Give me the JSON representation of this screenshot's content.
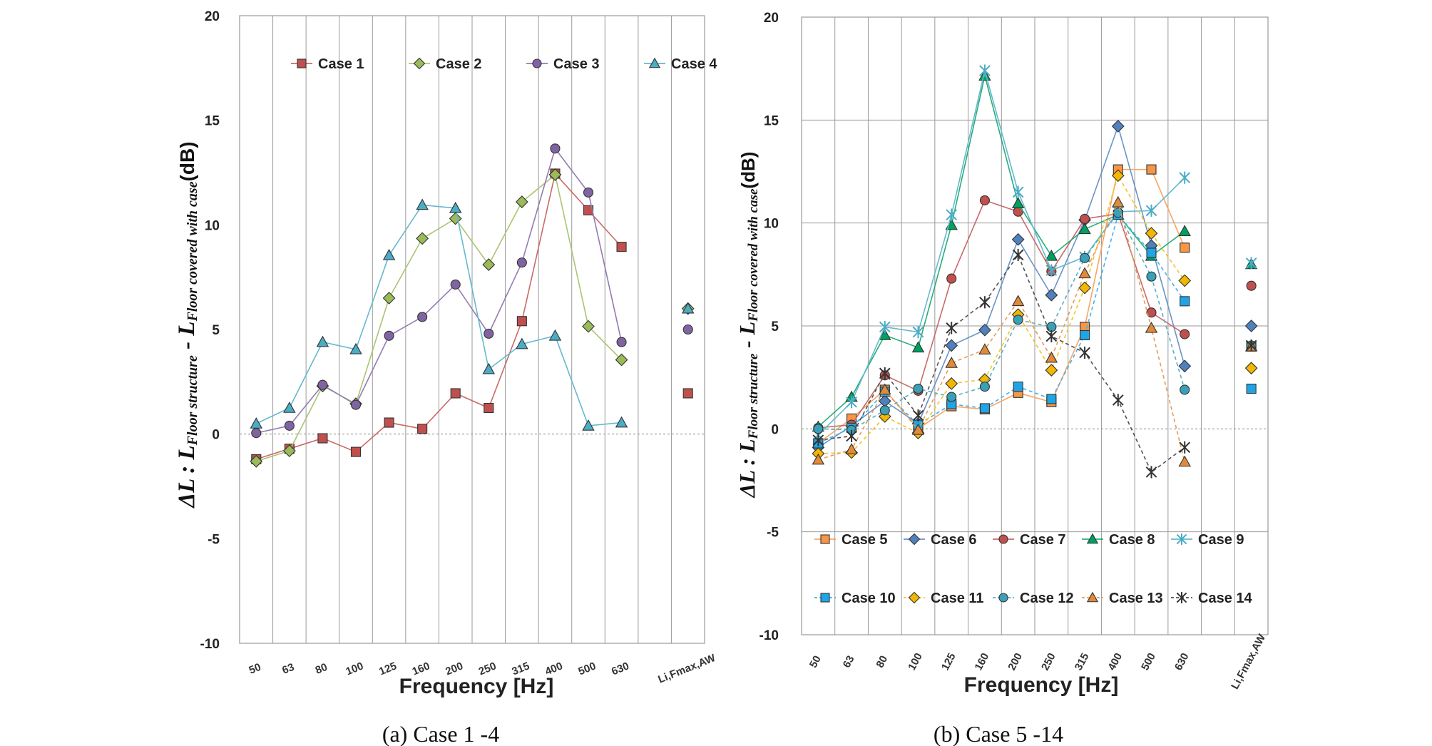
{
  "chart_data": [
    {
      "type": "line",
      "caption": "(a) Case 1 -4",
      "xlabel": "Frequency [Hz]",
      "ylabel": {
        "prefix": "ΔL : L",
        "sub1": "Floor structure",
        "mid": " - L",
        "sub2": "Floor covered with case",
        "suffix": "(dB)"
      },
      "categories": [
        "50",
        "63",
        "80",
        "100",
        "125",
        "160",
        "200",
        "250",
        "315",
        "400",
        "500",
        "630",
        "",
        "Li,Fmax,AW"
      ],
      "ylim": [
        -10,
        20
      ],
      "yticks": [
        -10,
        -5,
        0,
        5,
        10,
        15,
        20
      ],
      "series": [
        {
          "name": "Case 1",
          "color": "#c0504d",
          "marker": "square",
          "dashed": false,
          "values": [
            -1.2,
            -0.7,
            -0.2,
            -0.85,
            0.55,
            0.25,
            1.95,
            1.25,
            5.4,
            12.45,
            10.7,
            8.95,
            null,
            1.95
          ]
        },
        {
          "name": "Case 2",
          "color": "#9bbb59",
          "marker": "diamond",
          "dashed": false,
          "values": [
            -1.3,
            -0.8,
            2.3,
            1.45,
            6.5,
            9.35,
            10.3,
            8.1,
            11.1,
            12.4,
            5.15,
            3.55,
            null,
            6.0
          ]
        },
        {
          "name": "Case 3",
          "color": "#8064a2",
          "marker": "circle",
          "dashed": false,
          "values": [
            0.05,
            0.4,
            2.35,
            1.4,
            4.7,
            5.6,
            7.15,
            4.8,
            8.2,
            13.65,
            11.55,
            4.4,
            null,
            5.0
          ]
        },
        {
          "name": "Case 4",
          "color": "#4bacc6",
          "marker": "triangle",
          "dashed": false,
          "values": [
            0.5,
            1.25,
            4.4,
            4.05,
            8.55,
            10.95,
            10.8,
            3.1,
            4.3,
            4.7,
            0.4,
            0.55,
            null,
            6.0
          ]
        }
      ]
    },
    {
      "type": "line",
      "caption": "(b) Case 5 -14",
      "xlabel": "Frequency [Hz]",
      "ylabel": {
        "prefix": "ΔL : L",
        "sub1": "Floor structure",
        "mid": " - L",
        "sub2": "Floor covered with case",
        "suffix": "(dB)"
      },
      "categories": [
        "50",
        "63",
        "80",
        "100",
        "125",
        "160",
        "200",
        "250",
        "315",
        "400",
        "500",
        "630",
        "",
        "Li,Fmax,AW"
      ],
      "ylim": [
        -10,
        20
      ],
      "yticks": [
        -10,
        -5,
        0,
        5,
        10,
        15,
        20
      ],
      "series": [
        {
          "name": "Case 5",
          "color": "#f79646",
          "marker": "square",
          "dashed": false,
          "values": [
            -0.7,
            0.5,
            1.9,
            0.0,
            1.1,
            0.95,
            1.75,
            1.3,
            4.95,
            12.6,
            12.6,
            8.8,
            null,
            4.0
          ]
        },
        {
          "name": "Case 6",
          "color": "#4f81bd",
          "marker": "diamond",
          "dashed": false,
          "values": [
            -0.9,
            0.15,
            1.35,
            0.25,
            4.05,
            4.8,
            9.2,
            6.5,
            10.15,
            14.7,
            8.9,
            3.05,
            null,
            5.0
          ]
        },
        {
          "name": "Case 7",
          "color": "#c0504d",
          "marker": "circle",
          "dashed": false,
          "values": [
            0.05,
            0.2,
            2.6,
            1.85,
            7.3,
            11.1,
            10.55,
            7.65,
            10.2,
            10.45,
            5.65,
            4.6,
            null,
            6.95
          ]
        },
        {
          "name": "Case 8",
          "color": "#00a060",
          "marker": "triangle",
          "dashed": false,
          "values": [
            0.1,
            1.55,
            4.55,
            3.95,
            9.9,
            17.15,
            10.95,
            8.4,
            9.7,
            10.4,
            8.4,
            9.6,
            null,
            8.0
          ]
        },
        {
          "name": "Case 9",
          "color": "#4bacc6",
          "marker": "asterisk",
          "dashed": false,
          "values": [
            -0.3,
            1.3,
            4.95,
            4.7,
            10.4,
            17.4,
            11.5,
            7.7,
            8.35,
            10.55,
            10.6,
            12.2,
            null,
            8.05
          ]
        },
        {
          "name": "Case 10",
          "color": "#1fa5e6",
          "marker": "square",
          "dashed": true,
          "values": [
            -0.7,
            0.05,
            1.8,
            0.2,
            1.2,
            1.0,
            2.05,
            1.45,
            4.55,
            10.4,
            8.55,
            6.2,
            null,
            1.95
          ]
        },
        {
          "name": "Case 11",
          "color": "#f2b800",
          "marker": "diamond",
          "dashed": true,
          "values": [
            -1.2,
            -1.15,
            0.6,
            -0.2,
            2.2,
            2.4,
            5.55,
            2.85,
            6.85,
            12.3,
            9.5,
            7.2,
            null,
            2.95
          ]
        },
        {
          "name": "Case 12",
          "color": "#3aa0b8",
          "marker": "circle",
          "dashed": true,
          "values": [
            0.0,
            -0.05,
            0.9,
            1.95,
            1.55,
            2.05,
            5.3,
            4.95,
            8.3,
            10.5,
            7.4,
            1.9,
            null,
            4.05
          ]
        },
        {
          "name": "Case 13",
          "color": "#e08a3a",
          "marker": "triangle",
          "dashed": true,
          "values": [
            -1.5,
            -1.0,
            1.9,
            -0.05,
            3.2,
            3.85,
            6.2,
            3.45,
            7.55,
            11.0,
            4.9,
            -1.6,
            null,
            4.0
          ]
        },
        {
          "name": "Case 14",
          "color": "#333333",
          "marker": "asterisk",
          "dashed": true,
          "values": [
            -0.55,
            -0.35,
            2.7,
            0.65,
            4.9,
            6.15,
            8.45,
            4.5,
            3.7,
            1.4,
            -2.1,
            -0.9,
            null,
            4.05
          ]
        }
      ]
    }
  ]
}
